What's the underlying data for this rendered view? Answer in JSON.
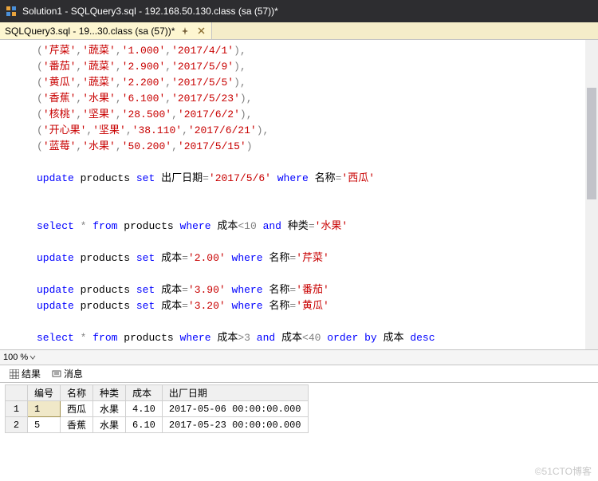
{
  "titlebar": {
    "text": "Solution1 - SQLQuery3.sql - 192.168.50.130.class (sa (57))*"
  },
  "tab": {
    "label": "SQLQuery3.sql - 19...30.class (sa (57))*"
  },
  "code": {
    "rows": [
      {
        "v1": "'芹菜'",
        "v2": "'蔬菜'",
        "v3": "'1.000'",
        "v4": "'2017/4/1'",
        "tail": ","
      },
      {
        "v1": "'番茄'",
        "v2": "'蔬菜'",
        "v3": "'2.900'",
        "v4": "'2017/5/9'",
        "tail": ","
      },
      {
        "v1": "'黄瓜'",
        "v2": "'蔬菜'",
        "v3": "'2.200'",
        "v4": "'2017/5/5'",
        "tail": ","
      },
      {
        "v1": "'香蕉'",
        "v2": "'水果'",
        "v3": "'6.100'",
        "v4": "'2017/5/23'",
        "tail": ","
      },
      {
        "v1": "'核桃'",
        "v2": "'坚果'",
        "v3": "'28.500'",
        "v4": "'2017/6/2'",
        "tail": ","
      },
      {
        "v1": "'开心果'",
        "v2": "'坚果'",
        "v3": "'38.110'",
        "v4": "'2017/6/21'",
        "tail": ","
      },
      {
        "v1": "'蓝莓'",
        "v2": "'水果'",
        "v3": "'50.200'",
        "v4": "'2017/5/15'",
        "tail": ""
      }
    ],
    "update1": {
      "kw1": "update",
      "t": "products",
      "kw2": "set",
      "col": "出厂日期",
      "eq": "=",
      "val": "'2017/5/6'",
      "kw3": "where",
      "col2": "名称",
      "eq2": "=",
      "val2": "'西瓜'"
    },
    "select1": {
      "kw1": "select",
      "star": "*",
      "kw2": "from",
      "t": "products",
      "kw3": "where",
      "col": "成本",
      "lt": "<10",
      "kw4": "and",
      "col2": "种类",
      "eq": "=",
      "val": "'水果'"
    },
    "update2": {
      "kw1": "update",
      "t": "products",
      "kw2": "set",
      "col": "成本",
      "eq": "=",
      "val": "'2.00'",
      "kw3": "where",
      "col2": "名称",
      "eq2": "=",
      "val2": "'芹菜'"
    },
    "update3": {
      "kw1": "update",
      "t": "products",
      "kw2": "set",
      "col": "成本",
      "eq": "=",
      "val": "'3.90'",
      "kw3": "where",
      "col2": "名称",
      "eq2": "=",
      "val2": "'番茄'"
    },
    "update4": {
      "kw1": "update",
      "t": "products",
      "kw2": "set",
      "col": "成本",
      "eq": "=",
      "val": "'3.20'",
      "kw3": "where",
      "col2": "名称",
      "eq2": "=",
      "val2": "'黄瓜'"
    },
    "select2": {
      "kw1": "select",
      "star": "*",
      "kw2": "from",
      "t": "products",
      "kw3": "where",
      "col": "成本",
      "gt": ">3",
      "kw4": "and",
      "col2": "成本",
      "lt": "<40",
      "kw5": "order",
      "kw6": "by",
      "col3": "成本",
      "kw7": "desc"
    }
  },
  "zoom": {
    "value": "100 %"
  },
  "rtabs": {
    "results": "结果",
    "messages": "消息"
  },
  "grid": {
    "headers": [
      "",
      "编号",
      "名称",
      "种类",
      "成本",
      "出厂日期"
    ],
    "rows": [
      {
        "rh": "1",
        "c0": "1",
        "c1": "西瓜",
        "c2": "水果",
        "c3": "4.10",
        "c4": "2017-05-06 00:00:00.000"
      },
      {
        "rh": "2",
        "c0": "5",
        "c1": "香蕉",
        "c2": "水果",
        "c3": "6.10",
        "c4": "2017-05-23 00:00:00.000"
      }
    ]
  },
  "watermark": "©51CTO博客",
  "colors": {
    "titlebar_bg": "#2d2d30",
    "tab_bg": "#fdf6d1",
    "keyword": "#0000ff",
    "string": "#c80000",
    "operator": "#808080",
    "selection": "#cce8ff"
  }
}
